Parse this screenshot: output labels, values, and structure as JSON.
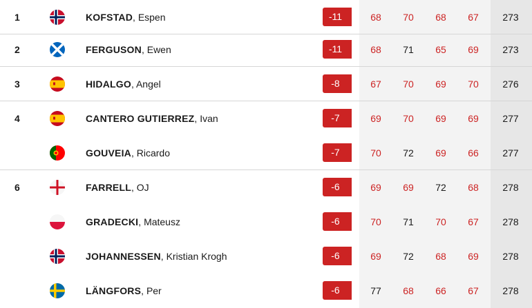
{
  "rows": [
    {
      "pos": "1",
      "flag": "norway",
      "last": "KOFSTAD",
      "first": "Espen",
      "score": "-11",
      "rounds": [
        "68",
        "70",
        "68",
        "67"
      ],
      "round_status": [
        "under",
        "under",
        "under",
        "under"
      ],
      "total": "273",
      "sep": true
    },
    {
      "pos": "2",
      "flag": "scotland",
      "last": "FERGUSON",
      "first": "Ewen",
      "score": "-11",
      "rounds": [
        "68",
        "71",
        "65",
        "69"
      ],
      "round_status": [
        "under",
        "par",
        "under",
        "under"
      ],
      "total": "273",
      "sep": true
    },
    {
      "pos": "3",
      "flag": "spain",
      "last": "HIDALGO",
      "first": "Angel",
      "score": "-8",
      "rounds": [
        "67",
        "70",
        "69",
        "70"
      ],
      "round_status": [
        "under",
        "under",
        "under",
        "under"
      ],
      "total": "276",
      "sep": true
    },
    {
      "pos": "4",
      "flag": "spain",
      "last": "CANTERO GUTIERREZ",
      "first": "Ivan",
      "score": "-7",
      "rounds": [
        "69",
        "70",
        "69",
        "69"
      ],
      "round_status": [
        "under",
        "under",
        "under",
        "under"
      ],
      "total": "277",
      "sep": false
    },
    {
      "pos": "",
      "flag": "portugal",
      "last": "GOUVEIA",
      "first": "Ricardo",
      "score": "-7",
      "rounds": [
        "70",
        "72",
        "69",
        "66"
      ],
      "round_status": [
        "under",
        "par",
        "under",
        "under"
      ],
      "total": "277",
      "sep": true
    },
    {
      "pos": "6",
      "flag": "england",
      "last": "FARRELL",
      "first": "OJ",
      "score": "-6",
      "rounds": [
        "69",
        "69",
        "72",
        "68"
      ],
      "round_status": [
        "under",
        "under",
        "par",
        "under"
      ],
      "total": "278",
      "sep": false
    },
    {
      "pos": "",
      "flag": "poland",
      "last": "GRADECKI",
      "first": "Mateusz",
      "score": "-6",
      "rounds": [
        "70",
        "71",
        "70",
        "67"
      ],
      "round_status": [
        "under",
        "par",
        "under",
        "under"
      ],
      "total": "278",
      "sep": false
    },
    {
      "pos": "",
      "flag": "norway",
      "last": "JOHANNESSEN",
      "first": "Kristian Krogh",
      "score": "-6",
      "rounds": [
        "69",
        "72",
        "68",
        "69"
      ],
      "round_status": [
        "under",
        "par",
        "under",
        "under"
      ],
      "total": "278",
      "sep": false
    },
    {
      "pos": "",
      "flag": "sweden",
      "last": "LÄNGFORS",
      "first": "Per",
      "score": "-6",
      "rounds": [
        "77",
        "68",
        "66",
        "67"
      ],
      "round_status": [
        "par",
        "under",
        "under",
        "under"
      ],
      "total": "278",
      "sep": false
    }
  ],
  "colors": {
    "under": "#cc2323",
    "par": "#1a1a1a",
    "badge": "#cc2323"
  }
}
